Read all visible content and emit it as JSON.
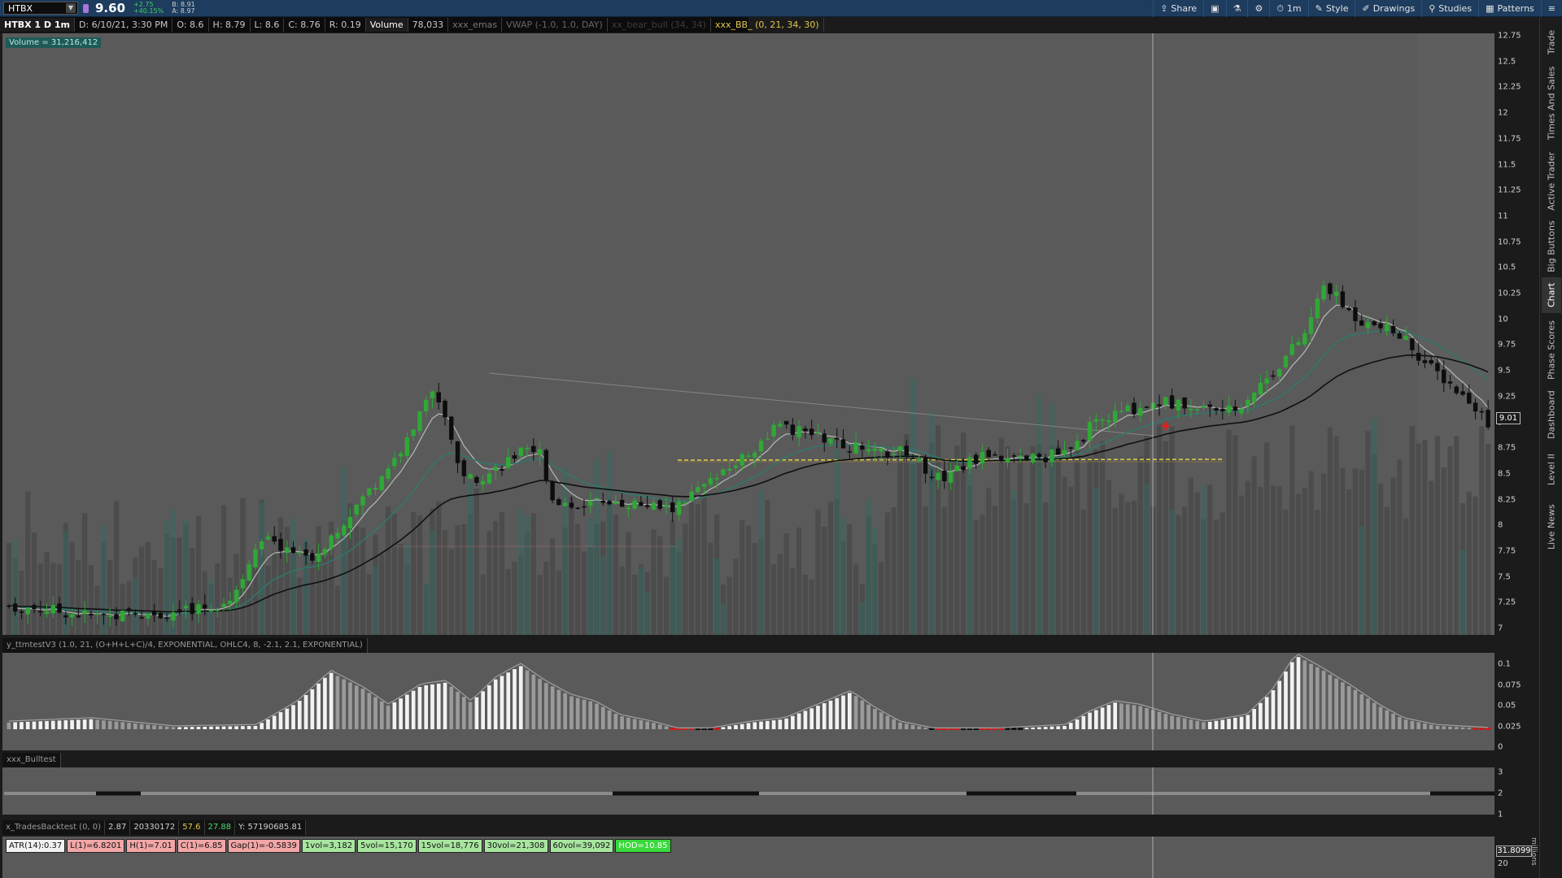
{
  "header": {
    "symbol": "HTBX",
    "last_price": "9.60",
    "change": "+2.75",
    "change_pct": "+40.15%",
    "bid": "B: 8.91",
    "ask": "A: 8.97"
  },
  "toolbar": [
    {
      "name": "share",
      "icon": "share-icon",
      "glyph": "⇪",
      "label": "Share"
    },
    {
      "name": "screenshot",
      "icon": "camera-icon",
      "glyph": "▣",
      "label": ""
    },
    {
      "name": "flask",
      "icon": "flask-icon",
      "glyph": "⚗",
      "label": ""
    },
    {
      "name": "settings",
      "icon": "gear-icon",
      "glyph": "⚙",
      "label": ""
    },
    {
      "name": "timeframe",
      "icon": "clock-icon",
      "glyph": "⏱",
      "label": "1m"
    },
    {
      "name": "style",
      "icon": "style-icon",
      "glyph": "✎",
      "label": "Style"
    },
    {
      "name": "drawings",
      "icon": "drawing-icon",
      "glyph": "✐",
      "label": "Drawings"
    },
    {
      "name": "studies",
      "icon": "studies-icon",
      "glyph": "⚲",
      "label": "Studies"
    },
    {
      "name": "patterns",
      "icon": "patterns-icon",
      "glyph": "▦",
      "label": "Patterns"
    },
    {
      "name": "menu",
      "icon": "menu-icon",
      "glyph": "≡",
      "label": ""
    }
  ],
  "studybar": {
    "sym_period": "HTBX 1 D 1m",
    "date": "D: 6/10/21, 3:30 PM",
    "open": "O: 8.6",
    "high": "H: 8.79",
    "low": "L: 8.6",
    "close": "C: 8.76",
    "range": "R: 0.19",
    "volume_label": "Volume",
    "volume_value": "78,033",
    "study1": "xxx_emas",
    "study2": "VWAP (-1.0, 1.0, DAY)",
    "study3": "xx_bear_bull (34, 34)",
    "study4": "xxx_BB_ (0, 21, 34, 30)"
  },
  "price_pane": {
    "volume_label": "Volume = 31,216,412",
    "axis_ticks": [
      "12.75",
      "12.5",
      "12.25",
      "12",
      "11.75",
      "11.5",
      "11.25",
      "11",
      "10.75",
      "10.5",
      "10.25",
      "10",
      "9.75",
      "9.5",
      "9.25",
      "9",
      "8.75",
      "8.5",
      "8.25",
      "8",
      "7.75",
      "7.5",
      "7.25",
      "7"
    ],
    "current_price_badge": "9.01"
  },
  "oscillator": {
    "title": "y_ttmtestV3 (1.0, 21, (O+H+L+C)/4, EXPONENTIAL, OHLC4, 8, -2.1, 2.1, EXPONENTIAL)",
    "axis_ticks": [
      "0.1",
      "0.075",
      "0.05",
      "0.025",
      "0"
    ]
  },
  "bulltest": {
    "title": "xxx_Bulltest",
    "axis_ticks": [
      "3",
      "2",
      "1"
    ]
  },
  "trades": {
    "name": "x_TradesBacktest (0, 0)",
    "v1": "2.87",
    "v2": "20330172",
    "v3": "57.6",
    "v4": "27.88",
    "v5": "Y: 57190685.81"
  },
  "bottom_labels": [
    {
      "text": "ATR(14):0.37",
      "style": "white"
    },
    {
      "text": "L(1)=6.8201",
      "style": "pink"
    },
    {
      "text": "H(1)=7.01",
      "style": "pink"
    },
    {
      "text": "C(1)=6.85",
      "style": "pink"
    },
    {
      "text": "Gap(1)=-0.5839",
      "style": "pink"
    },
    {
      "text": "1vol=3,182",
      "style": "lgreen"
    },
    {
      "text": "5vol=15,170",
      "style": "lgreen"
    },
    {
      "text": "15vol=18,776",
      "style": "lgreen"
    },
    {
      "text": "30vol=21,308",
      "style": "lgreen"
    },
    {
      "text": "60vol=39,092",
      "style": "lgreen"
    },
    {
      "text": "HOD=10.85",
      "style": "green"
    }
  ],
  "bottom_axis": {
    "badge": "31.8099",
    "tick": "20",
    "unit": "millions"
  },
  "side_tabs": [
    "Trade",
    "Times And Sales",
    "Active Trader",
    "Big Buttons",
    "Chart",
    "Phase Scores",
    "Dashboard",
    "Level II",
    "Live News"
  ],
  "colors": {
    "pane_bg": "#5a5a5a",
    "up_candle": "#2fa836",
    "down_candle": "#0d0d0d",
    "ema_fast": "#b8b8b8",
    "ema_mid": "#2d7a6e",
    "ema_slow": "#101010",
    "vwap": "#e0d24a"
  }
}
